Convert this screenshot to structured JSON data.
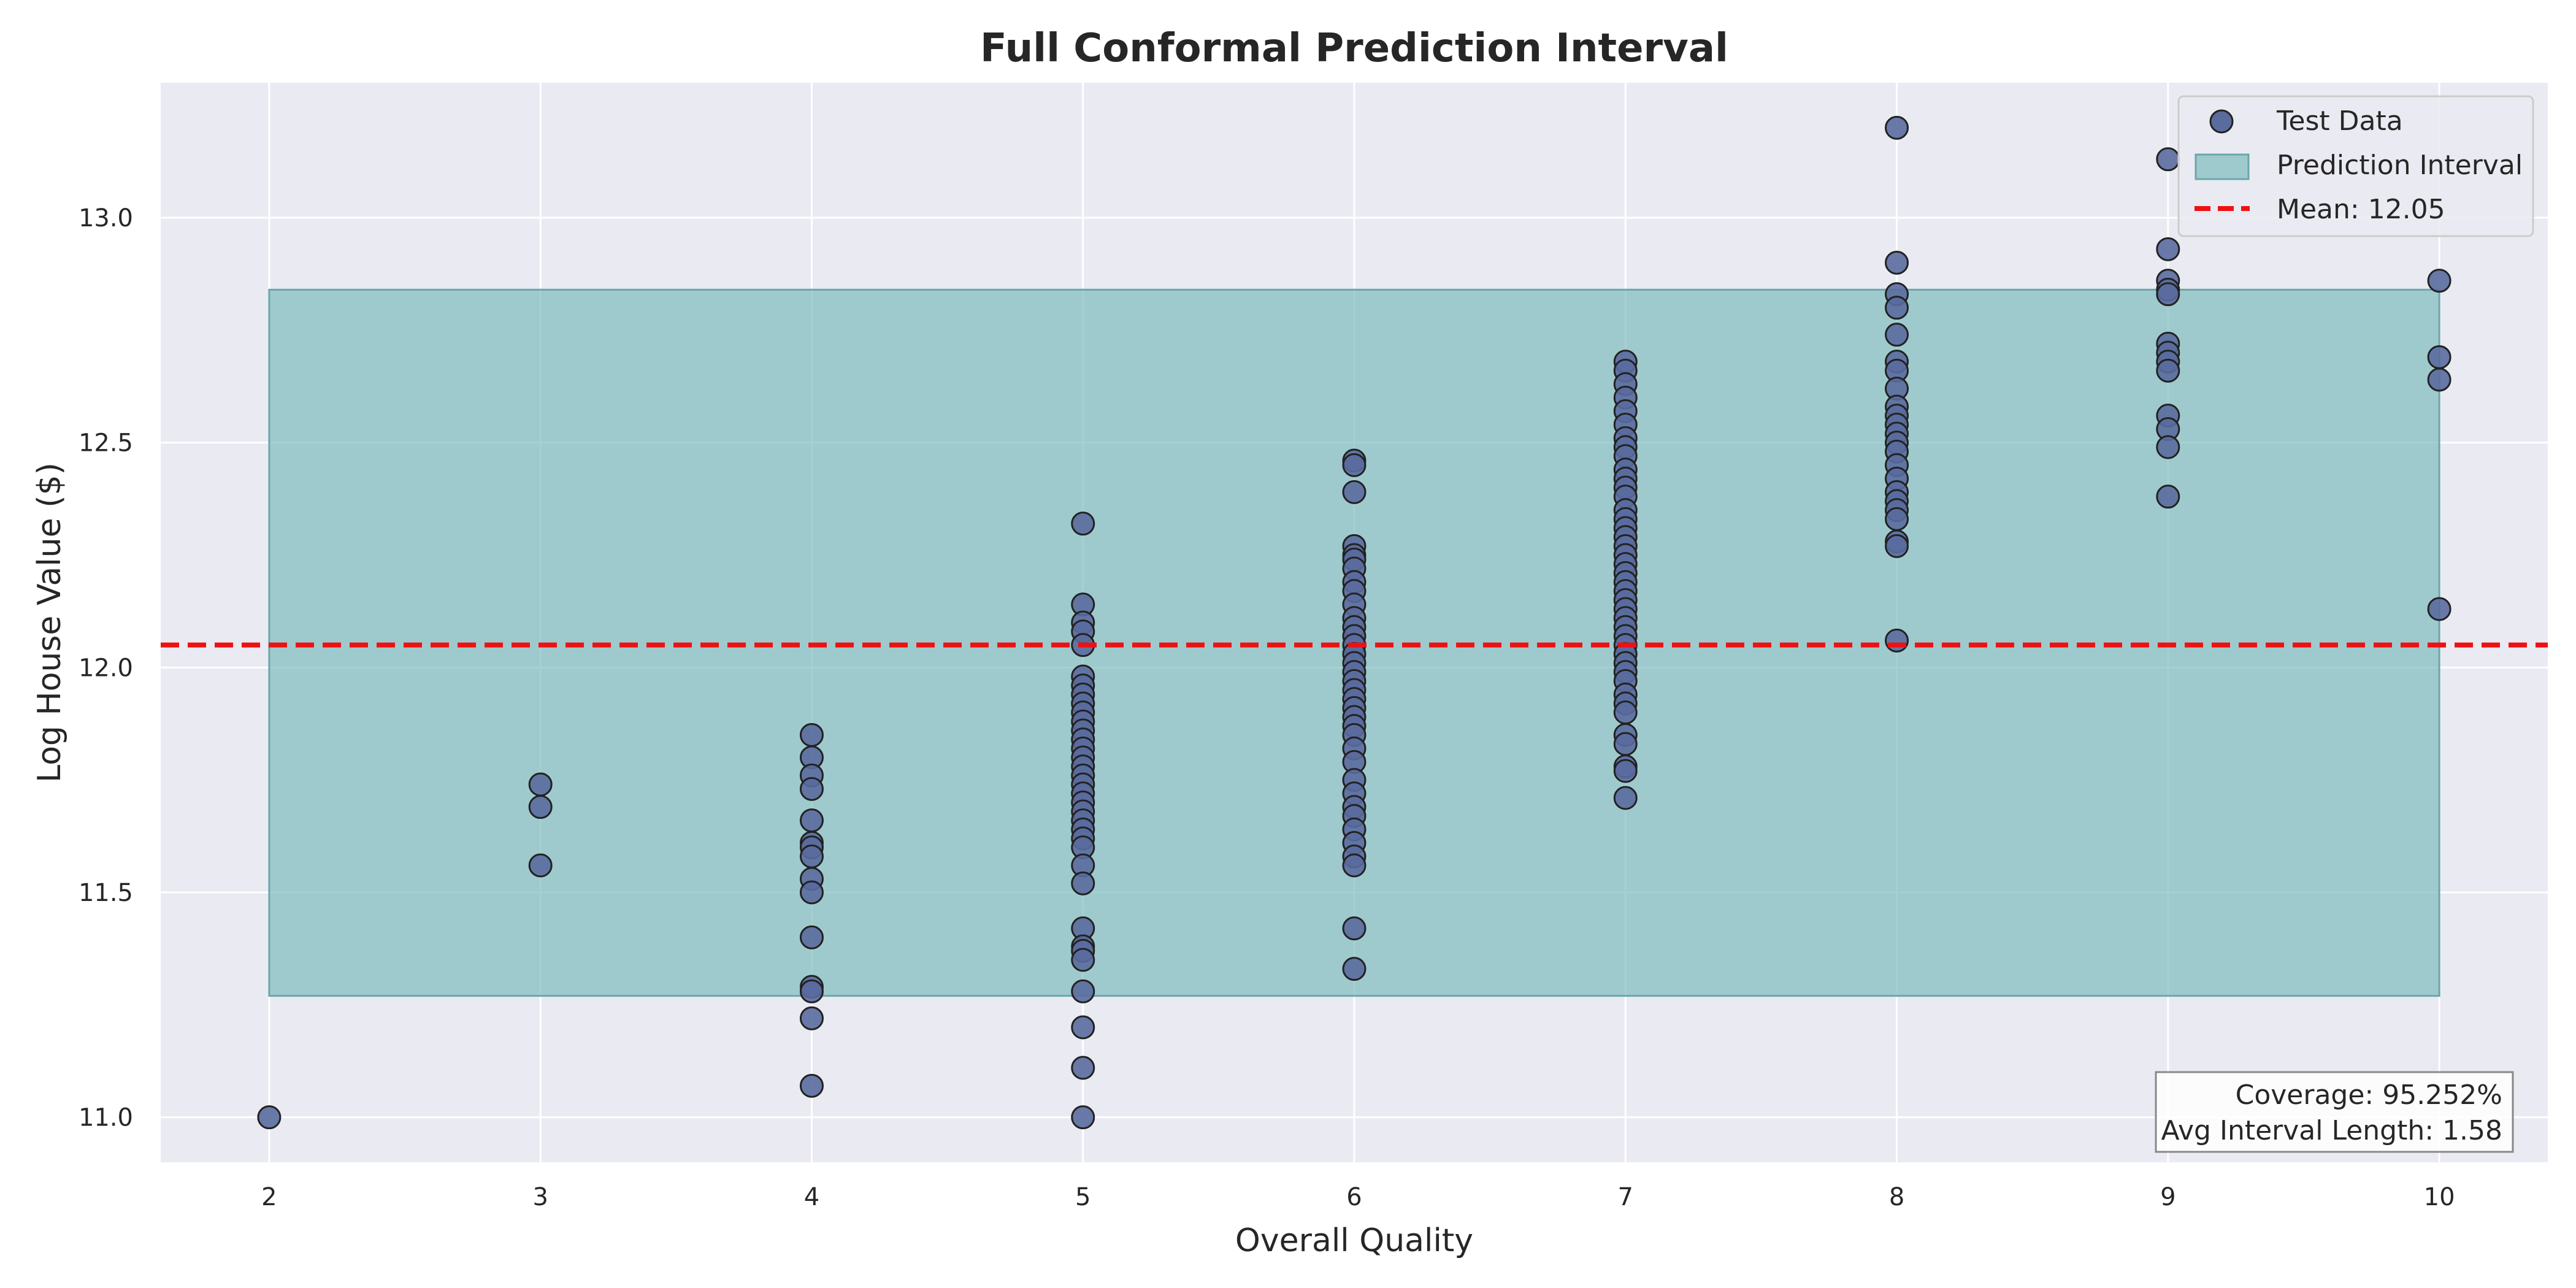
{
  "chart_data": {
    "type": "scatter",
    "title": "Full Conformal Prediction Interval",
    "xlabel": "Overall Quality",
    "ylabel": "Log House Value ($)",
    "xlim": [
      1.6,
      10.4
    ],
    "ylim": [
      10.9,
      13.3
    ],
    "x_ticks": [
      2,
      3,
      4,
      5,
      6,
      7,
      8,
      9,
      10
    ],
    "y_ticks": [
      11.0,
      11.5,
      12.0,
      12.5,
      13.0
    ],
    "y_tick_labels": [
      "11.0",
      "11.5",
      "12.0",
      "12.5",
      "13.0"
    ],
    "grid": true,
    "legend_position": "top-right",
    "legend": {
      "points": "Test Data",
      "interval": "Prediction Interval",
      "mean": "Mean: 12.05"
    },
    "annotation": {
      "coverage": "Coverage: 95.252%",
      "avg_length": "Avg Interval Length: 1.58"
    },
    "colors": {
      "background": "#eaeaf2",
      "points": "#5a6b9e",
      "interval": "#7fbcbe",
      "mean_line": "#ee1111"
    },
    "interval": {
      "x_start": 2,
      "x_end": 10,
      "lower": 11.27,
      "upper": 12.84
    },
    "mean": 12.05,
    "points": [
      {
        "x": 2,
        "y": [
          11.0
        ]
      },
      {
        "x": 3,
        "y": [
          11.74,
          11.69,
          11.56
        ]
      },
      {
        "x": 4,
        "y": [
          11.85,
          11.8,
          11.76,
          11.73,
          11.66,
          11.61,
          11.6,
          11.58,
          11.53,
          11.5,
          11.4,
          11.29,
          11.28,
          11.22,
          11.07
        ]
      },
      {
        "x": 5,
        "y": [
          12.32,
          12.14,
          12.1,
          12.08,
          12.05,
          11.98,
          11.96,
          11.94,
          11.92,
          11.9,
          11.88,
          11.86,
          11.84,
          11.82,
          11.8,
          11.78,
          11.76,
          11.74,
          11.72,
          11.7,
          11.68,
          11.66,
          11.64,
          11.62,
          11.6,
          11.56,
          11.52,
          11.42,
          11.38,
          11.37,
          11.35,
          11.28,
          11.2,
          11.11,
          11.0
        ]
      },
      {
        "x": 6,
        "y": [
          12.46,
          12.45,
          12.39,
          12.27,
          12.25,
          12.24,
          12.22,
          12.19,
          12.17,
          12.14,
          12.11,
          12.09,
          12.07,
          12.05,
          12.03,
          12.01,
          11.99,
          11.97,
          11.95,
          11.93,
          11.91,
          11.89,
          11.87,
          11.85,
          11.82,
          11.79,
          11.75,
          11.72,
          11.69,
          11.67,
          11.64,
          11.61,
          11.58,
          11.56,
          11.42,
          11.33
        ]
      },
      {
        "x": 7,
        "y": [
          12.68,
          12.66,
          12.63,
          12.6,
          12.57,
          12.54,
          12.51,
          12.49,
          12.47,
          12.44,
          12.42,
          12.4,
          12.38,
          12.35,
          12.33,
          12.31,
          12.29,
          12.27,
          12.25,
          12.23,
          12.21,
          12.19,
          12.17,
          12.15,
          12.13,
          12.11,
          12.09,
          12.07,
          12.05,
          12.03,
          12.01,
          11.99,
          11.97,
          11.94,
          11.92,
          11.9,
          11.85,
          11.83,
          11.78,
          11.77,
          11.71
        ]
      },
      {
        "x": 8,
        "y": [
          13.2,
          12.9,
          12.83,
          12.8,
          12.74,
          12.68,
          12.66,
          12.62,
          12.58,
          12.56,
          12.54,
          12.52,
          12.5,
          12.48,
          12.45,
          12.42,
          12.39,
          12.37,
          12.35,
          12.33,
          12.28,
          12.27,
          12.06
        ]
      },
      {
        "x": 9,
        "y": [
          13.13,
          12.93,
          12.86,
          12.84,
          12.83,
          12.72,
          12.7,
          12.68,
          12.66,
          12.56,
          12.53,
          12.49,
          12.38
        ]
      },
      {
        "x": 10,
        "y": [
          12.86,
          12.69,
          12.64,
          12.13
        ]
      }
    ]
  }
}
